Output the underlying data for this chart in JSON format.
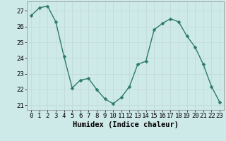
{
  "x": [
    0,
    1,
    2,
    3,
    4,
    5,
    6,
    7,
    8,
    9,
    10,
    11,
    12,
    13,
    14,
    15,
    16,
    17,
    18,
    19,
    20,
    21,
    22,
    23
  ],
  "y": [
    26.7,
    27.2,
    27.3,
    26.3,
    24.1,
    22.1,
    22.6,
    22.7,
    22.0,
    21.4,
    21.1,
    21.5,
    22.2,
    23.6,
    23.8,
    25.8,
    26.2,
    26.5,
    26.3,
    25.4,
    24.7,
    23.6,
    22.2,
    21.2
  ],
  "line_color": "#2d7a6a",
  "marker_color": "#2d7a6a",
  "bg_color": "#ceeae8",
  "grid_color": "#c0d8d4",
  "xlabel": "Humidex (Indice chaleur)",
  "ylim": [
    20.7,
    27.6
  ],
  "xlim": [
    -0.5,
    23.5
  ],
  "yticks": [
    21,
    22,
    23,
    24,
    25,
    26,
    27
  ],
  "xticks": [
    0,
    1,
    2,
    3,
    4,
    5,
    6,
    7,
    8,
    9,
    10,
    11,
    12,
    13,
    14,
    15,
    16,
    17,
    18,
    19,
    20,
    21,
    22,
    23
  ],
  "xlabel_fontsize": 7.5,
  "tick_fontsize": 6.5,
  "line_width": 1.0,
  "marker_size": 2.5
}
